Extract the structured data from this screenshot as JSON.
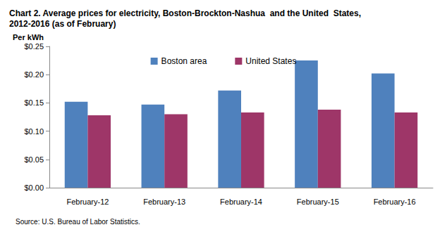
{
  "chart_data": {
    "type": "bar",
    "title": "Chart 2. Average prices for electricity, Boston-Brockton-Nashua  and the United  States,\n2012-2016 (as of February)",
    "y_label": "Per kWh",
    "source": "Source: U.S. Bureau of Labor Statistics.",
    "categories": [
      "February-12",
      "February-13",
      "February-14",
      "February-15",
      "February-16"
    ],
    "series": [
      {
        "name": "Boston area",
        "color": "#4F81BD",
        "values": [
          0.152,
          0.147,
          0.172,
          0.225,
          0.202
        ]
      },
      {
        "name": "United States",
        "color": "#9E3668",
        "values": [
          0.128,
          0.13,
          0.133,
          0.138,
          0.133
        ]
      }
    ],
    "ylim": [
      0,
      0.25
    ],
    "yticks": [
      {
        "value": 0,
        "label": "$0.00"
      },
      {
        "value": 0.05,
        "label": "$0.05"
      },
      {
        "value": 0.1,
        "label": "$0.10"
      },
      {
        "value": 0.15,
        "label": "$0.15"
      },
      {
        "value": 0.2,
        "label": "$0.20"
      },
      {
        "value": 0.25,
        "label": "$0.25"
      }
    ],
    "grid": false,
    "legend": "top"
  }
}
